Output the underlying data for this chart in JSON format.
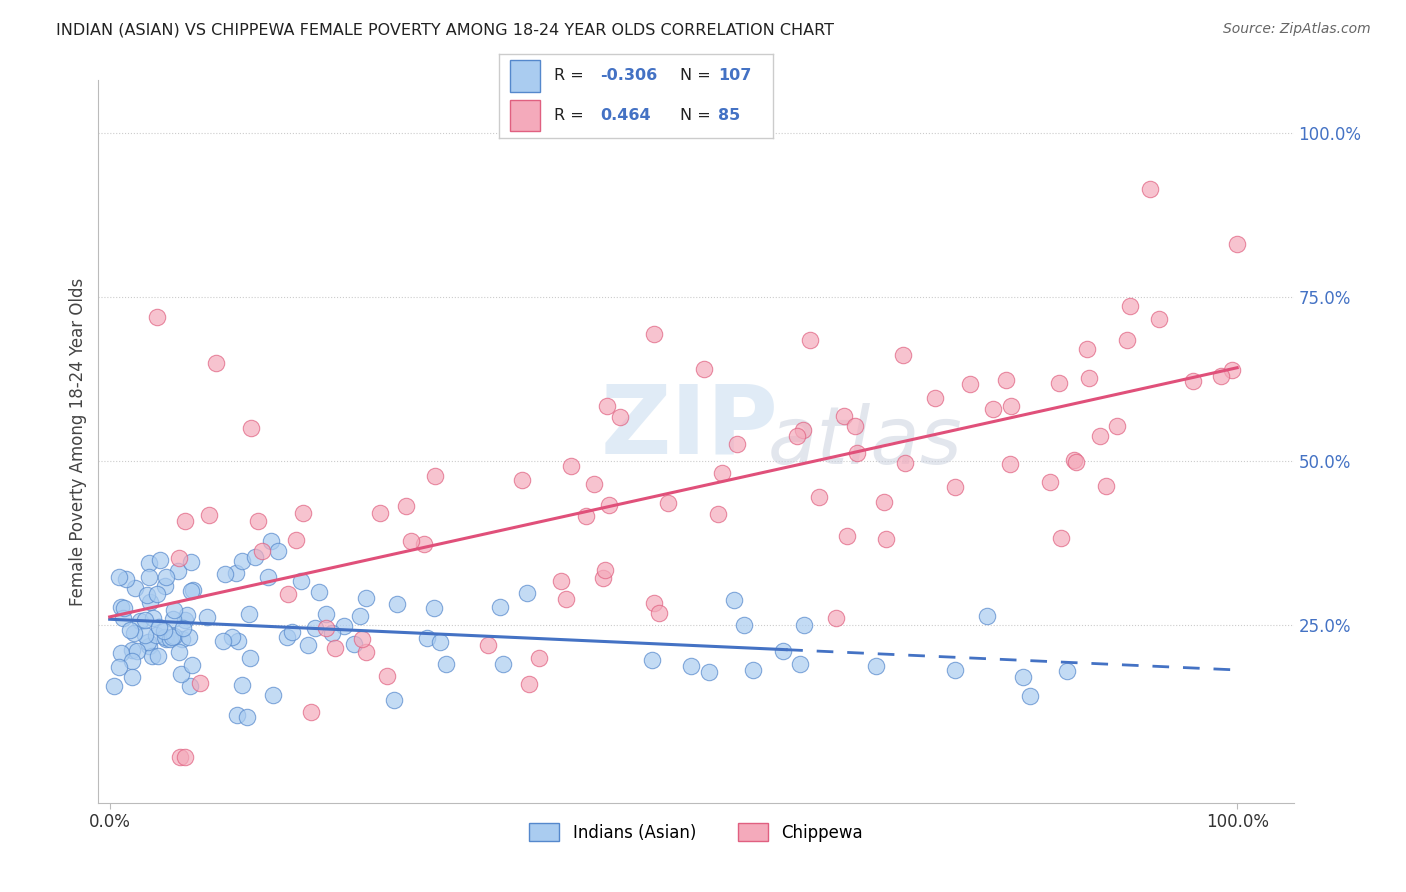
{
  "title": "INDIAN (ASIAN) VS CHIPPEWA FEMALE POVERTY AMONG 18-24 YEAR OLDS CORRELATION CHART",
  "source": "Source: ZipAtlas.com",
  "ylabel": "Female Poverty Among 18-24 Year Olds",
  "color_blue_face": "#AACCF0",
  "color_blue_edge": "#5588CC",
  "color_pink_face": "#F4AABB",
  "color_pink_edge": "#E06080",
  "color_blue_line": "#4472C4",
  "color_pink_line": "#E0507A",
  "color_legend_text": "#4472C4",
  "color_grid": "#CCCCCC",
  "background": "#FFFFFF",
  "r_indian": -0.306,
  "n_indian": 107,
  "r_chippewa": 0.464,
  "n_chippewa": 85,
  "bottom_label1": "Indians (Asian)",
  "bottom_label2": "Chippewa"
}
